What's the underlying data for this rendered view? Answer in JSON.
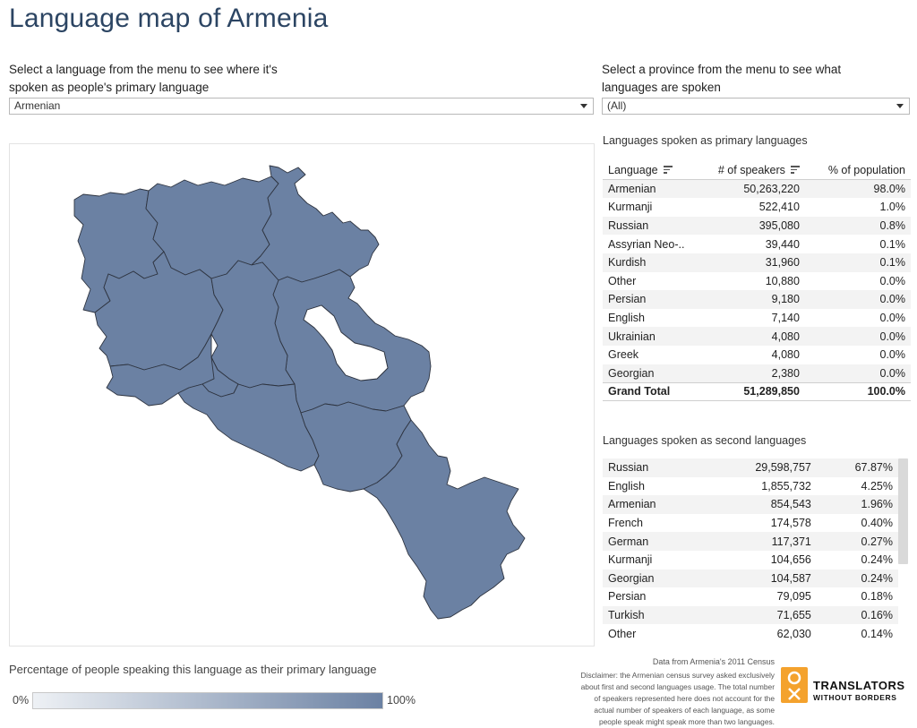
{
  "title": "Language map of Armenia",
  "language_filter": {
    "label": "Select a language from the menu to see where it's spoken as people's primary language",
    "value": "Armenian"
  },
  "province_filter": {
    "label": "Select a province from the menu to see what languages are spoken",
    "value": "(All)"
  },
  "map": {
    "fill_color": "#6b81a3",
    "border_color": "#2e3440",
    "lake_color": "#ffffff"
  },
  "primary_languages": {
    "title": "Languages spoken as primary languages",
    "headers": {
      "language": "Language",
      "speakers": "# of speakers",
      "percent": "% of population"
    },
    "rows": [
      {
        "language": "Armenian",
        "speakers": "50,263,220",
        "percent": "98.0%"
      },
      {
        "language": "Kurmanji",
        "speakers": "522,410",
        "percent": "1.0%"
      },
      {
        "language": "Russian",
        "speakers": "395,080",
        "percent": "0.8%"
      },
      {
        "language": "Assyrian Neo-..",
        "speakers": "39,440",
        "percent": "0.1%"
      },
      {
        "language": "Kurdish",
        "speakers": "31,960",
        "percent": "0.1%"
      },
      {
        "language": "Other",
        "speakers": "10,880",
        "percent": "0.0%"
      },
      {
        "language": "Persian",
        "speakers": "9,180",
        "percent": "0.0%"
      },
      {
        "language": "English",
        "speakers": "7,140",
        "percent": "0.0%"
      },
      {
        "language": "Ukrainian",
        "speakers": "4,080",
        "percent": "0.0%"
      },
      {
        "language": "Greek",
        "speakers": "4,080",
        "percent": "0.0%"
      },
      {
        "language": "Georgian",
        "speakers": "2,380",
        "percent": "0.0%"
      }
    ],
    "total": {
      "language": "Grand Total",
      "speakers": "51,289,850",
      "percent": "100.0%"
    }
  },
  "second_languages": {
    "title": "Languages spoken as second languages",
    "rows": [
      {
        "language": "Russian",
        "speakers": "29,598,757",
        "percent": "67.87%"
      },
      {
        "language": "English",
        "speakers": "1,855,732",
        "percent": "4.25%"
      },
      {
        "language": "Armenian",
        "speakers": "854,543",
        "percent": "1.96%"
      },
      {
        "language": "French",
        "speakers": "174,578",
        "percent": "0.40%"
      },
      {
        "language": "German",
        "speakers": "117,371",
        "percent": "0.27%"
      },
      {
        "language": "Kurmanji",
        "speakers": "104,656",
        "percent": "0.24%"
      },
      {
        "language": "Georgian",
        "speakers": "104,587",
        "percent": "0.24%"
      },
      {
        "language": "Persian",
        "speakers": "79,095",
        "percent": "0.18%"
      },
      {
        "language": "Turkish",
        "speakers": "71,655",
        "percent": "0.16%"
      },
      {
        "language": "Other",
        "speakers": "62,030",
        "percent": "0.14%"
      }
    ]
  },
  "legend": {
    "title": "Percentage of people speaking this language as their primary language",
    "min": "0%",
    "max": "100%",
    "color_low": "#eef1f5",
    "color_high": "#6b81a3"
  },
  "source": {
    "data_line": "Data from Armenia's 2011 Census",
    "disclaimer": "Disclaimer: the Armenian census survey asked exclusively about first and second languages usage. The total number of speakers represented here does not account for the actual  number of speakers of each language, as some people speak might speak more than two languages."
  },
  "logo": {
    "name": "TRANSLATORS",
    "sub": "WITHOUT BORDERS",
    "color": "#f4a22d"
  }
}
